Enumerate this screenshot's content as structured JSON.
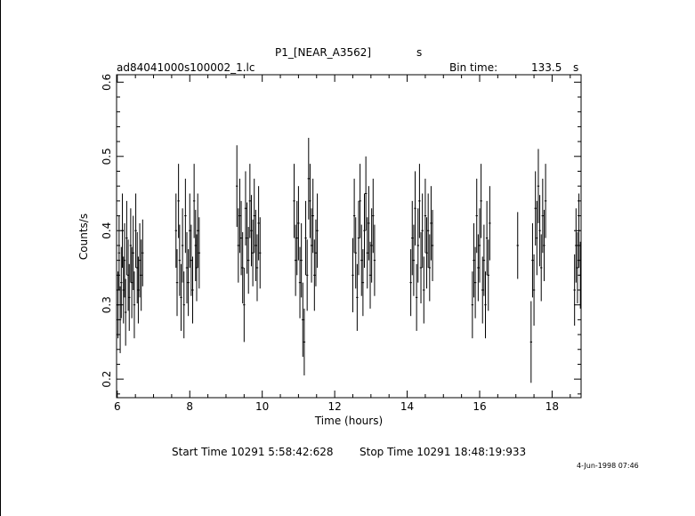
{
  "header": {
    "title": "P1_[NEAR_A3562]",
    "title_unit": "s",
    "file_name": "ad84041000s100002_1.lc",
    "bin_label": "Bin time:",
    "bin_value": "133.5",
    "bin_unit": "s"
  },
  "footer": {
    "start_time": "Start Time 10291  5:58:42:628",
    "stop_time": "Stop Time 10291  18:48:19:933",
    "timestamp": "4-Jun-1998 07:46"
  },
  "chart_data": {
    "type": "scatter",
    "title": "P1_[NEAR_A3562]",
    "xlabel": "Time (hours)",
    "ylabel": "Counts/s",
    "xlim": [
      5.98,
      18.8
    ],
    "ylim": [
      0.175,
      0.61
    ],
    "xticks": [
      6,
      8,
      10,
      12,
      14,
      16,
      18
    ],
    "xtick_labels": [
      "6",
      "8",
      "10",
      "12",
      "14",
      "16",
      "18"
    ],
    "yticks": [
      0.2,
      0.3,
      0.4,
      0.5,
      0.6
    ],
    "ytick_labels": [
      "0.2",
      "0.3",
      "0.4",
      "0.5",
      "0.6"
    ],
    "grid": false,
    "error_bars": true,
    "points": [
      [
        6.02,
        0.3,
        0.045
      ],
      [
        6.05,
        0.37,
        0.05
      ],
      [
        6.08,
        0.28,
        0.045
      ],
      [
        6.11,
        0.33,
        0.048
      ],
      [
        6.14,
        0.4,
        0.05
      ],
      [
        6.17,
        0.32,
        0.045
      ],
      [
        6.2,
        0.36,
        0.05
      ],
      [
        6.23,
        0.29,
        0.045
      ],
      [
        6.26,
        0.39,
        0.05
      ],
      [
        6.3,
        0.34,
        0.048
      ],
      [
        6.33,
        0.31,
        0.045
      ],
      [
        6.37,
        0.38,
        0.05
      ],
      [
        6.4,
        0.33,
        0.048
      ],
      [
        6.44,
        0.37,
        0.05
      ],
      [
        6.47,
        0.3,
        0.045
      ],
      [
        6.51,
        0.4,
        0.05
      ],
      [
        6.55,
        0.35,
        0.048
      ],
      [
        6.58,
        0.32,
        0.045
      ],
      [
        6.62,
        0.36,
        0.05
      ],
      [
        6.66,
        0.34,
        0.048
      ],
      [
        6.7,
        0.37,
        0.045
      ],
      [
        7.62,
        0.4,
        0.05
      ],
      [
        7.65,
        0.33,
        0.045
      ],
      [
        7.69,
        0.44,
        0.05
      ],
      [
        7.72,
        0.36,
        0.048
      ],
      [
        7.76,
        0.31,
        0.045
      ],
      [
        7.8,
        0.38,
        0.05
      ],
      [
        7.84,
        0.3,
        0.045
      ],
      [
        7.88,
        0.42,
        0.05
      ],
      [
        7.92,
        0.35,
        0.048
      ],
      [
        7.96,
        0.33,
        0.045
      ],
      [
        8.0,
        0.4,
        0.05
      ],
      [
        8.04,
        0.36,
        0.048
      ],
      [
        8.08,
        0.32,
        0.045
      ],
      [
        8.12,
        0.44,
        0.05
      ],
      [
        8.16,
        0.38,
        0.048
      ],
      [
        8.19,
        0.35,
        0.045
      ],
      [
        8.22,
        0.4,
        0.05
      ],
      [
        8.26,
        0.37,
        0.048
      ],
      [
        9.3,
        0.46,
        0.055
      ],
      [
        9.34,
        0.38,
        0.05
      ],
      [
        9.38,
        0.42,
        0.05
      ],
      [
        9.42,
        0.39,
        0.05
      ],
      [
        9.46,
        0.35,
        0.048
      ],
      [
        9.5,
        0.3,
        0.05
      ],
      [
        9.54,
        0.43,
        0.05
      ],
      [
        9.58,
        0.39,
        0.048
      ],
      [
        9.62,
        0.36,
        0.045
      ],
      [
        9.66,
        0.44,
        0.05
      ],
      [
        9.7,
        0.4,
        0.048
      ],
      [
        9.74,
        0.37,
        0.045
      ],
      [
        9.78,
        0.42,
        0.05
      ],
      [
        9.82,
        0.38,
        0.048
      ],
      [
        9.86,
        0.35,
        0.045
      ],
      [
        9.9,
        0.41,
        0.05
      ],
      [
        9.94,
        0.37,
        0.048
      ],
      [
        10.88,
        0.44,
        0.05
      ],
      [
        10.92,
        0.36,
        0.048
      ],
      [
        10.96,
        0.39,
        0.05
      ],
      [
        11.0,
        0.41,
        0.05
      ],
      [
        11.04,
        0.33,
        0.048
      ],
      [
        11.08,
        0.36,
        0.05
      ],
      [
        11.12,
        0.28,
        0.05
      ],
      [
        11.16,
        0.25,
        0.045
      ],
      [
        11.2,
        0.39,
        0.05
      ],
      [
        11.24,
        0.34,
        0.048
      ],
      [
        11.28,
        0.47,
        0.055
      ],
      [
        11.32,
        0.44,
        0.05
      ],
      [
        11.36,
        0.38,
        0.05
      ],
      [
        11.4,
        0.42,
        0.05
      ],
      [
        11.44,
        0.34,
        0.048
      ],
      [
        11.48,
        0.37,
        0.045
      ],
      [
        11.52,
        0.4,
        0.05
      ],
      [
        12.5,
        0.34,
        0.05
      ],
      [
        12.54,
        0.42,
        0.05
      ],
      [
        12.58,
        0.37,
        0.048
      ],
      [
        12.62,
        0.31,
        0.045
      ],
      [
        12.66,
        0.39,
        0.05
      ],
      [
        12.7,
        0.44,
        0.05
      ],
      [
        12.74,
        0.36,
        0.048
      ],
      [
        12.78,
        0.33,
        0.045
      ],
      [
        12.82,
        0.4,
        0.05
      ],
      [
        12.86,
        0.45,
        0.05
      ],
      [
        12.9,
        0.37,
        0.048
      ],
      [
        12.94,
        0.41,
        0.05
      ],
      [
        12.98,
        0.34,
        0.045
      ],
      [
        13.02,
        0.38,
        0.05
      ],
      [
        13.06,
        0.42,
        0.05
      ],
      [
        13.1,
        0.36,
        0.048
      ],
      [
        14.1,
        0.33,
        0.045
      ],
      [
        14.14,
        0.39,
        0.05
      ],
      [
        14.18,
        0.36,
        0.048
      ],
      [
        14.22,
        0.43,
        0.05
      ],
      [
        14.26,
        0.31,
        0.045
      ],
      [
        14.3,
        0.38,
        0.05
      ],
      [
        14.34,
        0.44,
        0.05
      ],
      [
        14.38,
        0.35,
        0.048
      ],
      [
        14.42,
        0.4,
        0.05
      ],
      [
        14.46,
        0.32,
        0.045
      ],
      [
        14.5,
        0.42,
        0.05
      ],
      [
        14.54,
        0.37,
        0.048
      ],
      [
        14.58,
        0.4,
        0.05
      ],
      [
        14.62,
        0.35,
        0.045
      ],
      [
        14.66,
        0.41,
        0.05
      ],
      [
        14.7,
        0.38,
        0.048
      ],
      [
        15.8,
        0.3,
        0.045
      ],
      [
        15.84,
        0.36,
        0.05
      ],
      [
        15.88,
        0.33,
        0.048
      ],
      [
        15.92,
        0.42,
        0.05
      ],
      [
        15.96,
        0.35,
        0.045
      ],
      [
        16.0,
        0.38,
        0.05
      ],
      [
        16.04,
        0.44,
        0.05
      ],
      [
        16.08,
        0.32,
        0.045
      ],
      [
        16.12,
        0.36,
        0.048
      ],
      [
        16.16,
        0.3,
        0.045
      ],
      [
        16.2,
        0.39,
        0.05
      ],
      [
        16.24,
        0.34,
        0.048
      ],
      [
        16.28,
        0.41,
        0.05
      ],
      [
        17.05,
        0.38,
        0.045
      ],
      [
        17.42,
        0.25,
        0.055
      ],
      [
        17.46,
        0.36,
        0.05
      ],
      [
        17.5,
        0.32,
        0.048
      ],
      [
        17.54,
        0.43,
        0.05
      ],
      [
        17.58,
        0.39,
        0.05
      ],
      [
        17.62,
        0.46,
        0.05
      ],
      [
        17.66,
        0.4,
        0.048
      ],
      [
        17.7,
        0.35,
        0.045
      ],
      [
        17.74,
        0.42,
        0.05
      ],
      [
        17.78,
        0.38,
        0.048
      ],
      [
        17.82,
        0.44,
        0.05
      ],
      [
        18.62,
        0.32,
        0.048
      ],
      [
        18.66,
        0.38,
        0.05
      ],
      [
        18.7,
        0.35,
        0.048
      ],
      [
        18.74,
        0.4,
        0.05
      ],
      [
        18.78,
        0.34,
        0.045
      ]
    ]
  }
}
